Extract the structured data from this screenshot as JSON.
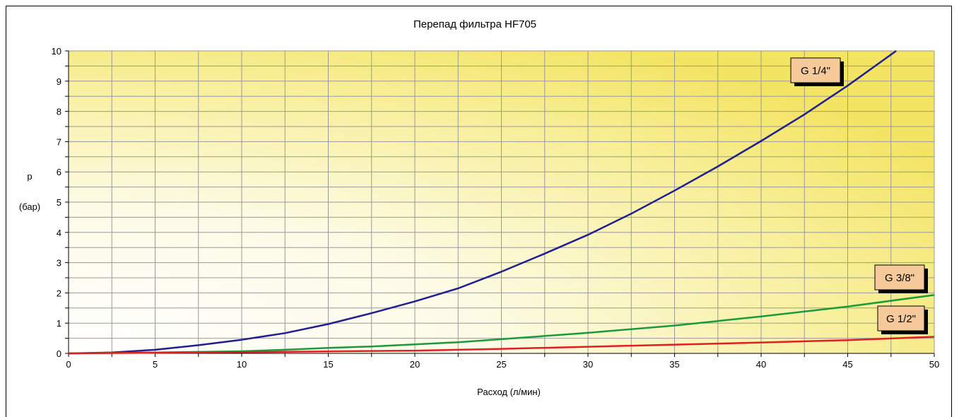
{
  "chart_data": {
    "type": "line",
    "title": "Перепад  фильтра HF705",
    "xlabel": "Расход (л/мин)",
    "ylabel_line1": "p",
    "ylabel_line2": "(бар)",
    "xlim": [
      0,
      50
    ],
    "ylim": [
      0,
      10
    ],
    "x_ticks": [
      "0",
      "5",
      "10",
      "15",
      "20",
      "25",
      "30",
      "35",
      "40",
      "45",
      "50"
    ],
    "y_ticks": [
      "0",
      "1",
      "2",
      "3",
      "4",
      "5",
      "6",
      "7",
      "8",
      "9",
      "10"
    ],
    "grid": true,
    "series": [
      {
        "name": "G 1/4\"",
        "color": "#1f1f8f",
        "points": [
          [
            0,
            0
          ],
          [
            2.5,
            0.03
          ],
          [
            5,
            0.12
          ],
          [
            7.5,
            0.27
          ],
          [
            10,
            0.45
          ],
          [
            12.5,
            0.67
          ],
          [
            15,
            0.97
          ],
          [
            17.5,
            1.33
          ],
          [
            20,
            1.72
          ],
          [
            22.5,
            2.15
          ],
          [
            25,
            2.7
          ],
          [
            27.5,
            3.3
          ],
          [
            30,
            3.92
          ],
          [
            32.5,
            4.62
          ],
          [
            35,
            5.38
          ],
          [
            37.5,
            6.18
          ],
          [
            40,
            7.02
          ],
          [
            42.5,
            7.9
          ],
          [
            45,
            8.85
          ],
          [
            47.8,
            10
          ]
        ]
      },
      {
        "name": "G 3/8\"",
        "color": "#1a9a3a",
        "points": [
          [
            0,
            0
          ],
          [
            5,
            0.03
          ],
          [
            10,
            0.07
          ],
          [
            12.5,
            0.12
          ],
          [
            15,
            0.18
          ],
          [
            17.5,
            0.23
          ],
          [
            20,
            0.3
          ],
          [
            22.5,
            0.37
          ],
          [
            25,
            0.47
          ],
          [
            30,
            0.68
          ],
          [
            35,
            0.92
          ],
          [
            40,
            1.22
          ],
          [
            45,
            1.55
          ],
          [
            50,
            1.93
          ]
        ]
      },
      {
        "name": "G 1/2\"",
        "color": "#e02020",
        "points": [
          [
            0,
            0
          ],
          [
            10,
            0.04
          ],
          [
            20,
            0.09
          ],
          [
            25,
            0.15
          ],
          [
            30,
            0.22
          ],
          [
            35,
            0.29
          ],
          [
            40,
            0.36
          ],
          [
            45,
            0.44
          ],
          [
            50,
            0.55
          ]
        ]
      }
    ],
    "label_fill": "#f5c99a"
  }
}
